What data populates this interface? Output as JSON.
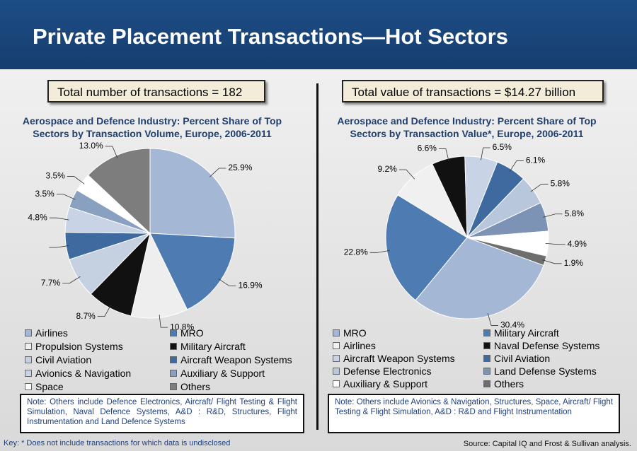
{
  "title": "Private Placement Transactions—Hot Sectors",
  "chart_data": [
    {
      "type": "pie",
      "summary": "Total number of transactions = 182",
      "title": "Aerospace and Defence Industry: Percent Share of Top Sectors by Transaction Volume, Europe, 2006-2011",
      "categories": [
        "Airlines",
        "MRO",
        "Propulsion Systems",
        "Military Aircraft",
        "Civil Aviation",
        "Aircraft Weapon Systems",
        "Avionics & Navigation",
        "Auxiliary & Support",
        "Space",
        "Others"
      ],
      "values": [
        25.9,
        16.9,
        10.8,
        8.7,
        7.7,
        5.2,
        4.8,
        3.5,
        3.5,
        13.0
      ],
      "value_labels": [
        "25.9%",
        "16.9%",
        "10.8%",
        "8.7%",
        "7.7%",
        null,
        "4.8%",
        "3.5%",
        "3.5%",
        "13.0%"
      ],
      "colors": [
        "#a4b8d6",
        "#4f7bb3",
        "#eeeeee",
        "#111111",
        "#c5d0e0",
        "#3f6aa0",
        "#c8d4e6",
        "#8aa0c0",
        "#ffffff",
        "#7d7d7d"
      ],
      "note": "Note: Others include Defence Electronics, Aircraft/ Flight Testing & Flight Simulation, Naval Defence Systems, A&D : R&D, Structures, Flight Instrumentation and Land Defence Systems"
    },
    {
      "type": "pie",
      "summary": "Total value of transactions = $14.27 billion",
      "title": "Aerospace and Defence Industry: Percent Share of Top Sectors by Transaction Value*, Europe, 2006-2011",
      "categories": [
        "MRO",
        "Military Aircraft",
        "Airlines",
        "Naval Defense Systems",
        "Aircraft Weapon Systems",
        "Civil Aviation",
        "Defense Electronics",
        "Land Defense Systems",
        "Auxiliary & Support",
        "Others"
      ],
      "values": [
        30.4,
        22.8,
        9.2,
        6.6,
        6.5,
        6.1,
        5.8,
        5.8,
        4.9,
        1.9
      ],
      "value_labels": [
        "30.4%",
        "22.8%",
        "9.2%",
        "6.6%",
        "6.5%",
        "6.1%",
        "5.8%",
        "5.8%",
        "4.9%",
        "1.9%"
      ],
      "colors": [
        "#a4b8d6",
        "#4f7bb3",
        "#f0f0f0",
        "#111111",
        "#c8d4e6",
        "#3f6aa0",
        "#b9c7dc",
        "#7d93b5",
        "#ffffff",
        "#6e6e6e"
      ],
      "note": "Note: Others include Avionics & Navigation, Structures, Space, Aircraft/ Flight Testing & Flight Simulation, A&D : R&D and Flight Instrumentation"
    }
  ],
  "key": "Key: *  Does not include transactions for which data is undisclosed",
  "source": "Source: Capital IQ and Frost & Sullivan analysis."
}
